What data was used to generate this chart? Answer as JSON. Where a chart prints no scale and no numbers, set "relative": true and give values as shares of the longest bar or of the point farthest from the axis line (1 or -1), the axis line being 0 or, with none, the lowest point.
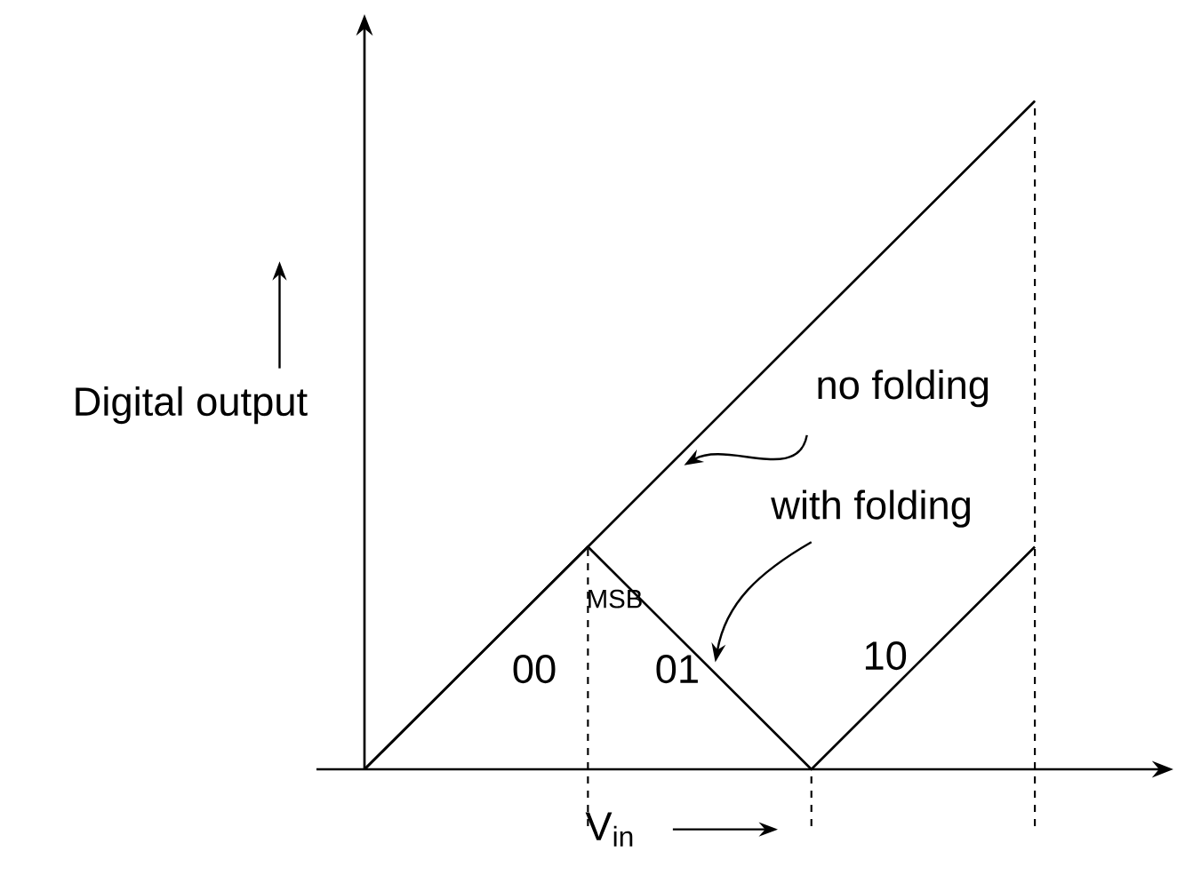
{
  "chart_data": {
    "type": "line",
    "relative": true,
    "categories": [
      null,
      null,
      null,
      null
    ],
    "series": [
      {
        "name": "no folding",
        "color": "#000000",
        "values": [
          0,
          0.333,
          0.667,
          1
        ]
      },
      {
        "name": "with folding",
        "color": "#000000",
        "values": [
          0,
          0.333,
          0,
          0.333
        ]
      }
    ],
    "xlabel": "V$_{in}$",
    "ylabel": "Digital output",
    "marker": "none",
    "annotations": [
      "MSB",
      "00",
      "01",
      "10"
    ]
  }
}
